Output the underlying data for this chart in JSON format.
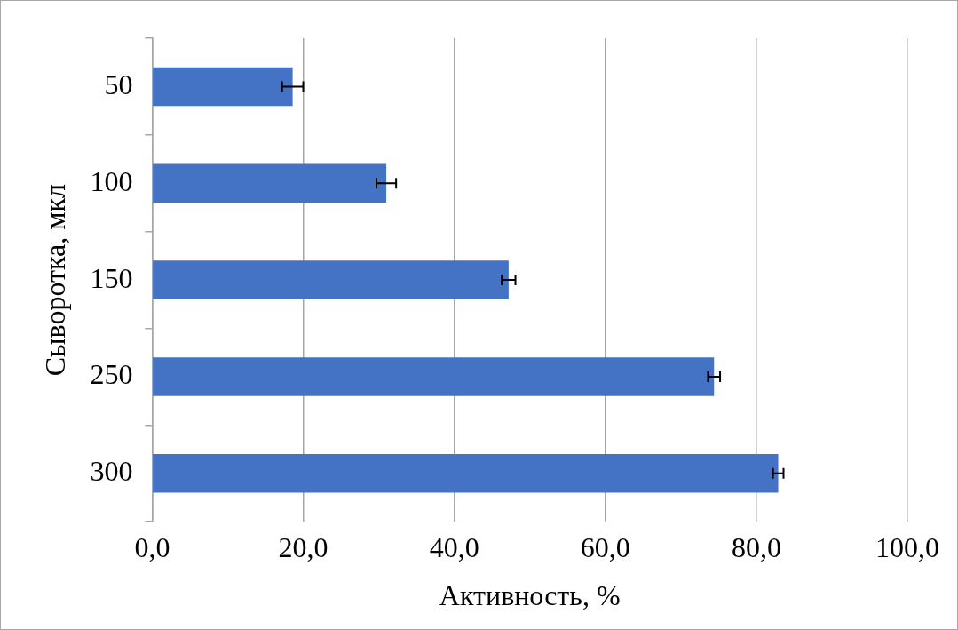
{
  "chart_data": {
    "type": "bar",
    "orientation": "horizontal",
    "xlabel": "Активность, %",
    "ylabel": "Сыворотка, мкл",
    "categories": [
      "50",
      "100",
      "150",
      "250",
      "300"
    ],
    "values": [
      18.6,
      31.0,
      47.2,
      74.4,
      82.9
    ],
    "errors": [
      1.4,
      1.3,
      0.9,
      0.8,
      0.7
    ],
    "color": "#4472c4",
    "xlim": [
      0,
      100
    ],
    "xticks": [
      {
        "value": 0,
        "label": "0,0"
      },
      {
        "value": 20,
        "label": "20,0"
      },
      {
        "value": 40,
        "label": "40,0"
      },
      {
        "value": 60,
        "label": "60,0"
      },
      {
        "value": 80,
        "label": "80,0"
      },
      {
        "value": 100,
        "label": "100,0"
      }
    ],
    "grid": "x"
  }
}
